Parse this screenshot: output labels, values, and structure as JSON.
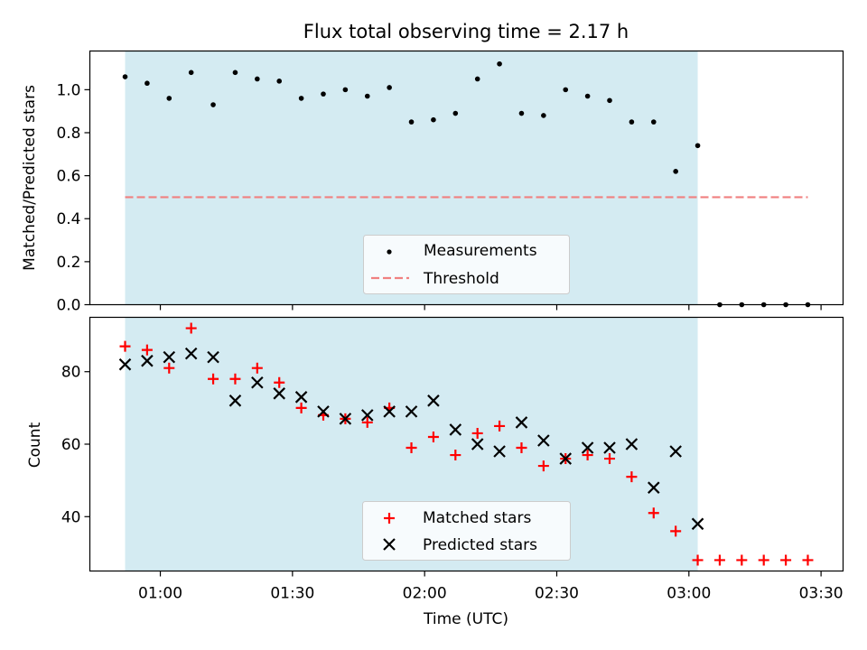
{
  "title": "Flux total observing time = 2.17 h",
  "xlabel": "Time (UTC)",
  "colors": {
    "shade": "#add8e6",
    "measurement": "#000000",
    "threshold": "#f08080",
    "matched": "#ff0000",
    "predicted": "#000000"
  },
  "chart_data": [
    {
      "type": "scatter",
      "ylabel": "Matched/Predicted stars",
      "ylim": [
        0,
        1.18
      ],
      "yticks": [
        "0.0",
        "0.2",
        "0.4",
        "0.6",
        "0.8",
        "1.0"
      ],
      "x": [
        "00:52",
        "00:57",
        "01:02",
        "01:07",
        "01:12",
        "01:17",
        "01:22",
        "01:27",
        "01:32",
        "01:37",
        "01:42",
        "01:47",
        "01:52",
        "01:57",
        "02:02",
        "02:07",
        "02:12",
        "02:17",
        "02:22",
        "02:27",
        "02:32",
        "02:37",
        "02:42",
        "02:47",
        "02:52",
        "02:57",
        "03:02",
        "03:07",
        "03:12",
        "03:17",
        "03:22",
        "03:27"
      ],
      "series": [
        {
          "name": "Measurements",
          "values": [
            1.06,
            1.03,
            0.96,
            1.08,
            0.93,
            1.08,
            1.05,
            1.04,
            0.96,
            0.98,
            1.0,
            0.97,
            1.01,
            0.85,
            0.86,
            0.89,
            1.05,
            1.12,
            0.89,
            0.88,
            1.0,
            0.97,
            0.95,
            0.85,
            0.85,
            0.62,
            0.74,
            0.0,
            0.0,
            0.0,
            0.0,
            0.0
          ]
        },
        {
          "name": "Threshold",
          "value": 0.5,
          "x_range": [
            "00:52",
            "03:27"
          ]
        }
      ],
      "shaded_interval": [
        "00:52",
        "03:02"
      ],
      "legend": "lower center"
    },
    {
      "type": "scatter",
      "ylabel": "Count",
      "ylim": [
        25,
        95
      ],
      "yticks": [
        "40",
        "60",
        "80"
      ],
      "x": [
        "00:52",
        "00:57",
        "01:02",
        "01:07",
        "01:12",
        "01:17",
        "01:22",
        "01:27",
        "01:32",
        "01:37",
        "01:42",
        "01:47",
        "01:52",
        "01:57",
        "02:02",
        "02:07",
        "02:12",
        "02:17",
        "02:22",
        "02:27",
        "02:32",
        "02:37",
        "02:42",
        "02:47",
        "02:52",
        "02:57",
        "03:02",
        "03:07",
        "03:12",
        "03:17",
        "03:22",
        "03:27"
      ],
      "series": [
        {
          "name": "Matched stars",
          "values": [
            87,
            86,
            81,
            92,
            78,
            78,
            81,
            77,
            70,
            68,
            67,
            66,
            70,
            59,
            62,
            57,
            63,
            65,
            59,
            54,
            56,
            57,
            56,
            51,
            41,
            36,
            28,
            28,
            28,
            28,
            28,
            28
          ]
        },
        {
          "name": "Predicted stars",
          "values": [
            82,
            83,
            84,
            85,
            84,
            72,
            77,
            74,
            73,
            69,
            67,
            68,
            69,
            69,
            72,
            64,
            60,
            58,
            66,
            61,
            56,
            59,
            59,
            60,
            48,
            58,
            38
          ]
        }
      ],
      "shaded_interval": [
        "00:52",
        "03:02"
      ],
      "legend": "lower center"
    }
  ],
  "xticks": [
    "01:00",
    "01:30",
    "02:00",
    "02:30",
    "03:00",
    "03:30"
  ]
}
